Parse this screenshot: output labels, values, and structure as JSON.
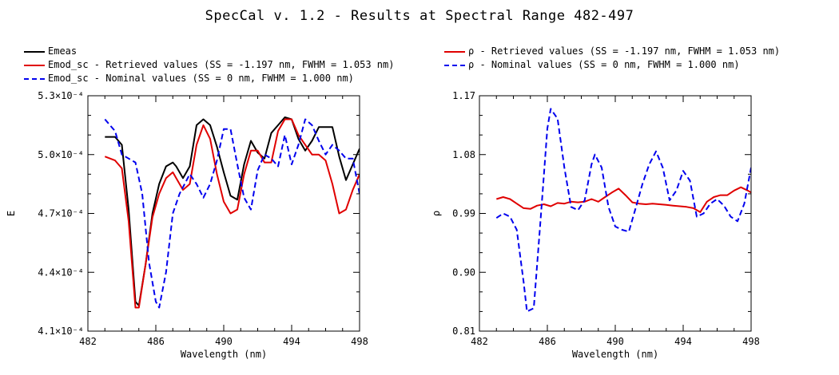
{
  "title": "SpecCal v. 1.2 - Results at Spectral Range 482-497",
  "colors": {
    "measured": "#000000",
    "retrieved": "#e00000",
    "nominal": "#0000ee"
  },
  "chart_data": [
    {
      "type": "line",
      "xlabel": "Wavelength (nm)",
      "ylabel": "E",
      "xlim": [
        482,
        498
      ],
      "ylim": [
        0.00041,
        0.00053
      ],
      "xticks": [
        482,
        486,
        490,
        494,
        498
      ],
      "xtick_labels": [
        "482",
        "486",
        "490",
        "494",
        "498"
      ],
      "yticks": [
        0.00041,
        0.00044,
        0.00047,
        0.0005,
        0.00053
      ],
      "ytick_labels": [
        "4.1×10⁻⁴",
        "4.4×10⁻⁴",
        "4.7×10⁻⁴",
        "5.0×10⁻⁴",
        "5.3×10⁻⁴"
      ],
      "legend": "top-left, above plot",
      "series": [
        {
          "name": "Emeas",
          "style": "solid",
          "color": "#000000",
          "x": [
            483.0,
            483.6,
            484.0,
            484.4,
            484.8,
            485.0,
            485.4,
            485.8,
            486.2,
            486.6,
            487.0,
            487.2,
            487.6,
            488.0,
            488.4,
            488.8,
            489.2,
            489.6,
            490.0,
            490.4,
            490.8,
            491.2,
            491.6,
            492.0,
            492.4,
            492.8,
            493.2,
            493.6,
            494.0,
            494.4,
            494.8,
            495.2,
            495.6,
            496.0,
            496.4,
            496.8,
            497.2,
            497.6,
            498.0
          ],
          "y": [
            0.000509,
            0.000509,
            0.000505,
            0.000472,
            0.000425,
            0.000423,
            0.000444,
            0.00047,
            0.000485,
            0.000494,
            0.000496,
            0.000494,
            0.000488,
            0.000494,
            0.000515,
            0.000518,
            0.000515,
            0.000504,
            0.000491,
            0.000479,
            0.000477,
            0.000495,
            0.000507,
            0.000501,
            0.000498,
            0.000511,
            0.000515,
            0.000519,
            0.000518,
            0.000508,
            0.000502,
            0.000507,
            0.000514,
            0.000514,
            0.000514,
            0.000499,
            0.000487,
            0.000495,
            0.000503
          ]
        },
        {
          "name": "Emod_sc - Retrieved values (SS = -1.197 nm, FWHM =  1.053 nm)",
          "style": "solid",
          "color": "#e00000",
          "x": [
            483.0,
            483.6,
            484.0,
            484.4,
            484.8,
            485.0,
            485.4,
            485.8,
            486.2,
            486.6,
            487.0,
            487.2,
            487.6,
            488.0,
            488.4,
            488.8,
            489.2,
            489.6,
            490.0,
            490.4,
            490.8,
            491.2,
            491.6,
            492.0,
            492.4,
            492.8,
            493.2,
            493.6,
            494.0,
            494.4,
            494.8,
            495.2,
            495.6,
            496.0,
            496.4,
            496.8,
            497.2,
            497.6,
            498.0
          ],
          "y": [
            0.000499,
            0.000497,
            0.000493,
            0.000466,
            0.000422,
            0.000422,
            0.000444,
            0.000468,
            0.00048,
            0.000488,
            0.000491,
            0.000488,
            0.000482,
            0.000485,
            0.000505,
            0.000515,
            0.000508,
            0.00049,
            0.000476,
            0.00047,
            0.000472,
            0.00049,
            0.000502,
            0.000502,
            0.000496,
            0.000496,
            0.000512,
            0.000518,
            0.000518,
            0.00051,
            0.000505,
            0.0005,
            0.0005,
            0.000497,
            0.000485,
            0.00047,
            0.000472,
            0.000482,
            0.00049
          ]
        },
        {
          "name": "Emod_sc - Nominal values (SS = 0 nm, FWHM =  1.000 nm)",
          "style": "dashed",
          "color": "#0000ee",
          "x": [
            483.0,
            483.6,
            484.0,
            484.4,
            484.8,
            485.2,
            485.6,
            486.0,
            486.2,
            486.6,
            487.0,
            487.4,
            488.0,
            488.4,
            488.8,
            489.2,
            489.6,
            490.0,
            490.4,
            490.8,
            491.2,
            491.6,
            492.0,
            492.4,
            492.8,
            493.2,
            493.6,
            494.0,
            494.4,
            494.8,
            495.2,
            495.6,
            496.0,
            496.4,
            496.8,
            497.2,
            497.6,
            498.0
          ],
          "y": [
            0.000518,
            0.000512,
            0.0005,
            0.000498,
            0.000496,
            0.00048,
            0.000445,
            0.000425,
            0.000422,
            0.00044,
            0.00047,
            0.00048,
            0.00049,
            0.000485,
            0.000478,
            0.000485,
            0.000497,
            0.000513,
            0.000513,
            0.000495,
            0.000478,
            0.000472,
            0.000492,
            0.0005,
            0.000498,
            0.000494,
            0.00051,
            0.000495,
            0.000505,
            0.000518,
            0.000515,
            0.000507,
            0.0005,
            0.000505,
            0.000502,
            0.000498,
            0.000498,
            0.00048
          ]
        }
      ]
    },
    {
      "type": "line",
      "xlabel": "Wavelength (nm)",
      "ylabel": "ρ",
      "xlim": [
        482,
        498
      ],
      "ylim": [
        0.81,
        1.17
      ],
      "xticks": [
        482,
        486,
        490,
        494,
        498
      ],
      "xtick_labels": [
        "482",
        "486",
        "490",
        "494",
        "498"
      ],
      "yticks": [
        0.81,
        0.9,
        0.99,
        1.08,
        1.17
      ],
      "ytick_labels": [
        "0.81",
        "0.90",
        "0.99",
        "1.08",
        "1.17"
      ],
      "legend": "top-left, above plot",
      "series": [
        {
          "name": "ρ - Retrieved values (SS = -1.197 nm, FWHM =  1.053 nm)",
          "style": "solid",
          "color": "#e00000",
          "x": [
            483.0,
            483.4,
            483.8,
            484.2,
            484.6,
            485.0,
            485.4,
            485.8,
            486.2,
            486.6,
            487.0,
            487.4,
            487.8,
            488.2,
            488.6,
            489.0,
            489.4,
            489.8,
            490.2,
            490.6,
            491.0,
            491.4,
            491.8,
            492.2,
            492.6,
            493.0,
            493.4,
            493.8,
            494.2,
            494.6,
            495.0,
            495.4,
            495.8,
            496.2,
            496.6,
            497.0,
            497.4,
            497.8,
            498.0
          ],
          "y": [
            1.012,
            1.015,
            1.012,
            1.005,
            0.998,
            0.997,
            1.002,
            1.004,
            1.001,
            1.006,
            1.005,
            1.008,
            1.007,
            1.008,
            1.012,
            1.008,
            1.015,
            1.022,
            1.028,
            1.018,
            1.007,
            1.005,
            1.004,
            1.005,
            1.004,
            1.003,
            1.002,
            1.001,
            1.0,
            0.998,
            0.992,
            1.008,
            1.015,
            1.018,
            1.018,
            1.025,
            1.03,
            1.025,
            1.022
          ]
        },
        {
          "name": "ρ - Nominal values (SS = 0 nm, FWHM =  1.000 nm)",
          "style": "dashed",
          "color": "#0000ee",
          "x": [
            483.0,
            483.4,
            483.8,
            484.2,
            484.6,
            484.8,
            485.2,
            485.6,
            486.0,
            486.2,
            486.6,
            487.0,
            487.4,
            487.8,
            488.2,
            488.6,
            488.8,
            489.2,
            489.6,
            490.0,
            490.4,
            490.8,
            491.2,
            491.6,
            492.0,
            492.4,
            492.8,
            493.2,
            493.6,
            494.0,
            494.4,
            494.8,
            495.2,
            495.6,
            496.0,
            496.4,
            496.8,
            497.2,
            497.6,
            498.0
          ],
          "y": [
            0.983,
            0.99,
            0.985,
            0.965,
            0.885,
            0.84,
            0.845,
            0.98,
            1.12,
            1.15,
            1.135,
            1.06,
            1.0,
            0.995,
            1.01,
            1.065,
            1.08,
            1.06,
            1.0,
            0.97,
            0.965,
            0.962,
            0.998,
            1.035,
            1.065,
            1.085,
            1.06,
            1.01,
            1.025,
            1.055,
            1.04,
            0.985,
            0.99,
            1.005,
            1.012,
            1.002,
            0.985,
            0.978,
            1.005,
            1.06
          ]
        }
      ]
    }
  ]
}
